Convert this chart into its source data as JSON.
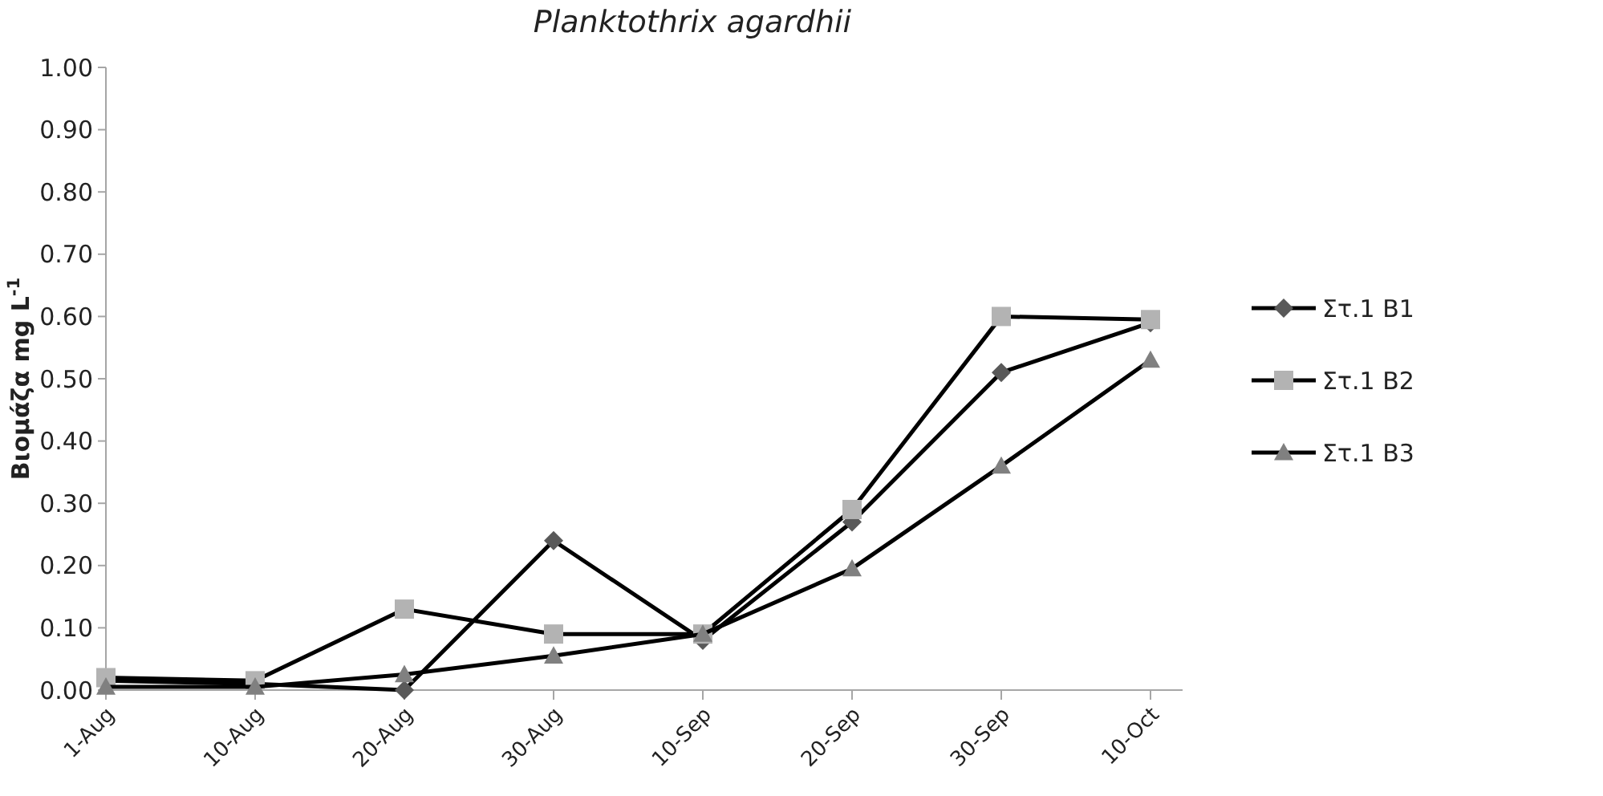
{
  "chart_data": {
    "type": "line",
    "title": "Planktothrix agardhii",
    "ylabel": "Βιομάζα mg L$^{-1}$",
    "categories": [
      "1-Aug",
      "10-Aug",
      "20-Aug",
      "30-Aug",
      "10-Sep",
      "20-Sep",
      "30-Sep",
      "10-Oct"
    ],
    "ylim": [
      0,
      1
    ],
    "yticks": [
      {
        "value": 0,
        "label": "0.00"
      },
      {
        "value": 0.1,
        "label": "0.10"
      },
      {
        "value": 0.2,
        "label": "0.20"
      },
      {
        "value": 0.3,
        "label": "0.30"
      },
      {
        "value": 0.4,
        "label": "0.40"
      },
      {
        "value": 0.5,
        "label": "0.50"
      },
      {
        "value": 0.6,
        "label": "0.60"
      },
      {
        "value": 0.7,
        "label": "0.70"
      },
      {
        "value": 0.8,
        "label": "0.80"
      },
      {
        "value": 0.9,
        "label": "0.90"
      },
      {
        "value": 1,
        "label": "1.00"
      }
    ],
    "grid": false,
    "legend": "right",
    "line_style": "solid",
    "series": [
      {
        "name": "Στ.1 B1",
        "color": "#595959",
        "marker": "diamond",
        "values": [
          0.015,
          0.01,
          0.0,
          0.24,
          0.08,
          0.27,
          0.51,
          0.59
        ]
      },
      {
        "name": "Στ.1 B2",
        "color": "#b3b3b3",
        "marker": "square",
        "values": [
          0.02,
          0.015,
          0.13,
          0.09,
          0.09,
          0.29,
          0.6,
          0.595
        ]
      },
      {
        "name": "Στ.1 B3",
        "color": "#808080",
        "marker": "triangle",
        "values": [
          0.005,
          0.005,
          0.025,
          0.055,
          0.09,
          0.195,
          0.36,
          0.53
        ]
      }
    ]
  }
}
